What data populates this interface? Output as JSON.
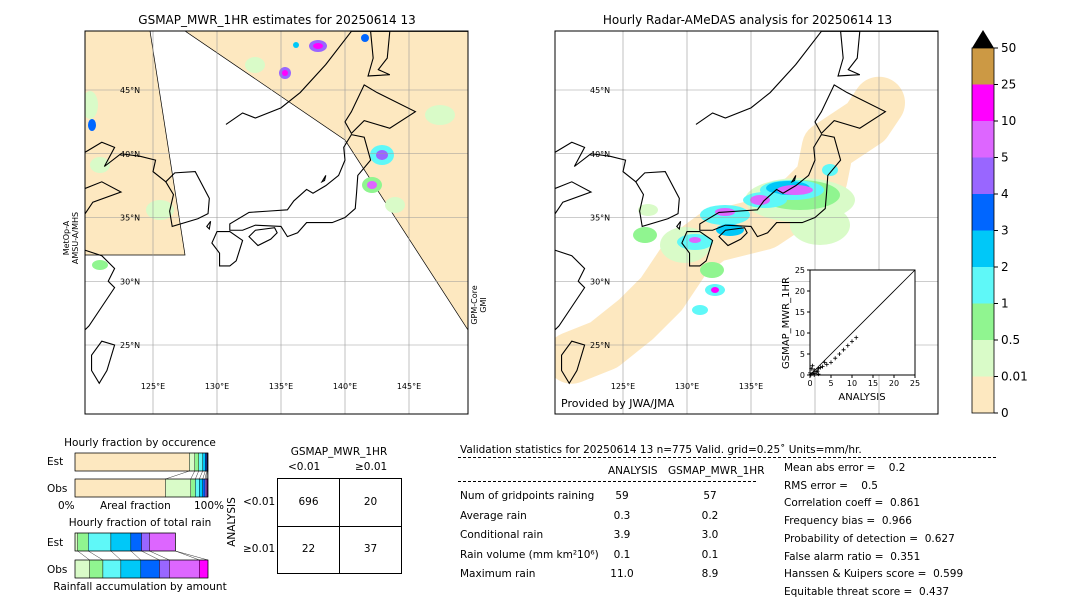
{
  "left_map": {
    "title": "GSMAP_MWR_1HR estimates for 20250614 13",
    "sensor_left": [
      "MetOp-A",
      "AMSU-A/MHS"
    ],
    "sensor_right": [
      "GPM-Core",
      "GMI"
    ],
    "lat_labels": [
      "45°N",
      "40°N",
      "35°N",
      "30°N",
      "25°N"
    ],
    "lon_labels": [
      "125°E",
      "130°E",
      "135°E",
      "140°E",
      "145°E"
    ]
  },
  "right_map": {
    "title": "Hourly Radar-AMeDAS analysis for 20250614 13",
    "credit": "Provided by JWA/JMA",
    "lat_labels": [
      "45°N",
      "40°N",
      "35°N",
      "30°N",
      "25°N"
    ],
    "lon_labels": [
      "125°E",
      "130°E",
      "135°E"
    ]
  },
  "chart_data": [
    {
      "type": "scatter",
      "xlabel": "ANALYSIS",
      "ylabel": "GSMAP_MWR_1HR",
      "xlim": [
        0,
        25
      ],
      "ylim": [
        0,
        25
      ],
      "ticks": [
        "0",
        "5",
        "10",
        "15",
        "20",
        "25"
      ],
      "points": [
        [
          0.2,
          0.1
        ],
        [
          0.5,
          0.3
        ],
        [
          0.8,
          0.5
        ],
        [
          1,
          1.2
        ],
        [
          1.2,
          0.4
        ],
        [
          1.5,
          0.8
        ],
        [
          2,
          1.5
        ],
        [
          2.5,
          1.8
        ],
        [
          3,
          2
        ],
        [
          0.3,
          1.5
        ],
        [
          0.6,
          2.2
        ],
        [
          1.8,
          0.9
        ],
        [
          4,
          2.5
        ],
        [
          5,
          3
        ],
        [
          6,
          4
        ],
        [
          7,
          5
        ],
        [
          8,
          6
        ],
        [
          9,
          7
        ],
        [
          10,
          8
        ],
        [
          11,
          8.9
        ],
        [
          3.5,
          3
        ],
        [
          1,
          0
        ],
        [
          0,
          0.5
        ],
        [
          2,
          0.2
        ]
      ]
    },
    {
      "type": "bar",
      "title": "Hourly fraction by occurence",
      "xlabel": "Areal fraction",
      "x_tick_labels": [
        "0%",
        "100%"
      ],
      "categories": [
        "Est",
        "Obs"
      ],
      "series_colors": [
        "#fde8c0",
        "#d9fbc8",
        "#90f590",
        "#5ff8f8",
        "#00c8f8",
        "#0066ff",
        "#9966ff",
        "#dd66ff",
        "#ff00ff",
        "#cc9944"
      ],
      "values_percent": [
        [
          86,
          4,
          3,
          3,
          2,
          1,
          0.5,
          0.3,
          0.2,
          0
        ],
        [
          68,
          19,
          3.5,
          3,
          2.5,
          1.8,
          1,
          0.7,
          0.5,
          0
        ]
      ]
    },
    {
      "type": "bar",
      "title": "Hourly fraction of total rain",
      "xlabel": "Rainfall accumulation by amount",
      "categories": [
        "Est",
        "Obs"
      ],
      "series_colors": [
        "#d9fbc8",
        "#90f590",
        "#5ff8f8",
        "#00c8f8",
        "#0066ff",
        "#9966ff",
        "#dd66ff",
        "#ff00ff"
      ],
      "values_percent": [
        [
          2,
          8,
          17,
          15,
          8,
          6,
          19.5,
          0
        ],
        [
          11,
          10,
          13.5,
          15,
          14,
          7.5,
          22.5,
          6.5
        ]
      ]
    },
    {
      "type": "heatmap",
      "colorbar": {
        "labels": [
          "0",
          "0.01",
          "0.5",
          "1",
          "2",
          "3",
          "4",
          "5",
          "10",
          "25",
          "50"
        ],
        "colors": [
          "#fde8c0",
          "#d9fbc8",
          "#90f590",
          "#5ff8f8",
          "#00c8f8",
          "#0066ff",
          "#9966ff",
          "#dd66ff",
          "#ff00ff",
          "#cc9944"
        ],
        "extend_color": "#000000"
      }
    }
  ],
  "contingency": {
    "col_title": "GSMAP_MWR_1HR",
    "col_labels": [
      "<0.01",
      "≥0.01"
    ],
    "row_title": "ANALYSIS",
    "row_labels": [
      "<0.01",
      "≥0.01"
    ],
    "cells": [
      [
        "696",
        "20"
      ],
      [
        "22",
        "37"
      ]
    ]
  },
  "stats": {
    "header": "Validation statistics for 20250614 13  n=775 Valid. grid=0.25˚ Units=mm/hr.",
    "col_analysis": "ANALYSIS",
    "col_gsmap": "GSMAP_MWR_1HR",
    "rows": [
      {
        "label": "Num of gridpoints raining",
        "analysis": "59",
        "gsmap": "57"
      },
      {
        "label": "Average rain",
        "analysis": "0.3",
        "gsmap": "0.2"
      },
      {
        "label": "Conditional rain",
        "analysis": "3.9",
        "gsmap": "3.0"
      },
      {
        "label": "Rain volume (mm km²10⁶)",
        "analysis": "0.1",
        "gsmap": "0.1"
      },
      {
        "label": "Maximum rain",
        "analysis": "11.0",
        "gsmap": "8.9"
      }
    ],
    "scores": [
      "Mean abs error =    0.2",
      "RMS error =    0.5",
      "Correlation coeff =  0.861",
      "Frequency bias =  0.966",
      "Probability of detection =  0.627",
      "False alarm ratio =  0.351",
      "Hanssen & Kuipers score =  0.599",
      "Equitable threat score =  0.437"
    ]
  }
}
